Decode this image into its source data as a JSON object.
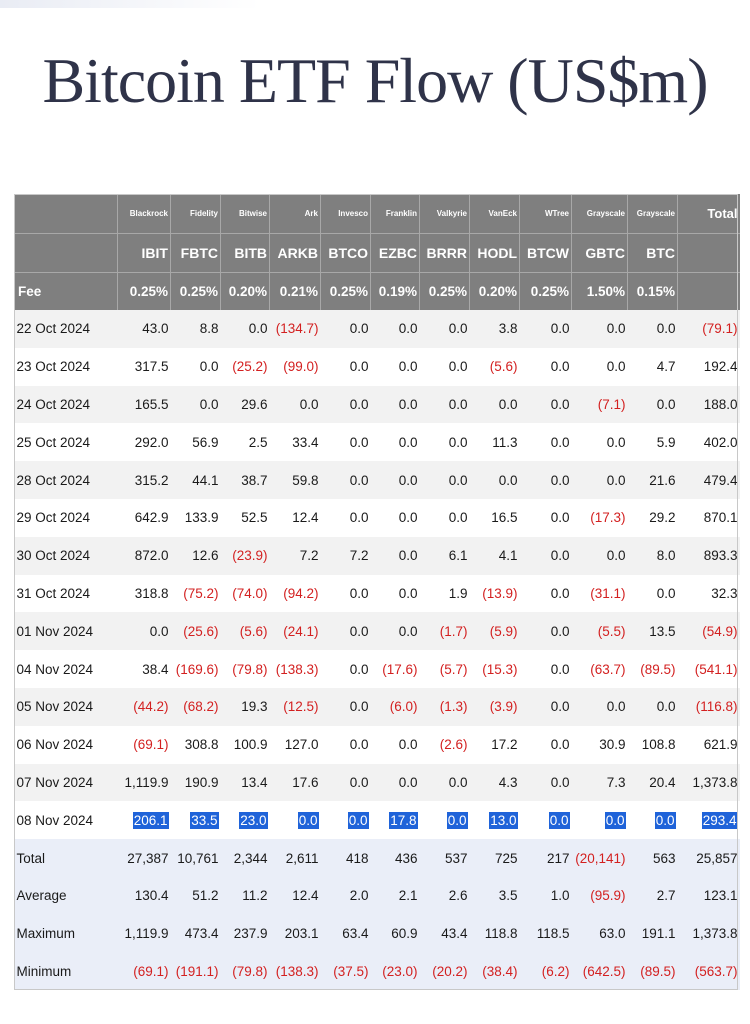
{
  "title": "Bitcoin ETF Flow (US$m)",
  "header": {
    "issuers": [
      "Blackrock",
      "Fidelity",
      "Bitwise",
      "Ark",
      "Invesco",
      "Franklin",
      "Valkyrie",
      "VanEck",
      "WTree",
      "Grayscale",
      "Grayscale"
    ],
    "total_label": "Total",
    "tickers": [
      "IBIT",
      "FBTC",
      "BITB",
      "ARKB",
      "BTCO",
      "EZBC",
      "BRRR",
      "HODL",
      "BTCW",
      "GBTC",
      "BTC"
    ],
    "fee_label": "Fee",
    "fees": [
      "0.25%",
      "0.25%",
      "0.20%",
      "0.21%",
      "0.25%",
      "0.19%",
      "0.25%",
      "0.20%",
      "0.25%",
      "1.50%",
      "0.15%"
    ]
  },
  "rows": [
    {
      "date": "22 Oct 2024",
      "values": [
        "43.0",
        "8.8",
        "0.0",
        "(134.7)",
        "0.0",
        "0.0",
        "0.0",
        "3.8",
        "0.0",
        "0.0",
        "0.0"
      ],
      "total": "(79.1)"
    },
    {
      "date": "23 Oct 2024",
      "values": [
        "317.5",
        "0.0",
        "(25.2)",
        "(99.0)",
        "0.0",
        "0.0",
        "0.0",
        "(5.6)",
        "0.0",
        "0.0",
        "4.7"
      ],
      "total": "192.4"
    },
    {
      "date": "24 Oct 2024",
      "values": [
        "165.5",
        "0.0",
        "29.6",
        "0.0",
        "0.0",
        "0.0",
        "0.0",
        "0.0",
        "0.0",
        "(7.1)",
        "0.0"
      ],
      "total": "188.0"
    },
    {
      "date": "25 Oct 2024",
      "values": [
        "292.0",
        "56.9",
        "2.5",
        "33.4",
        "0.0",
        "0.0",
        "0.0",
        "11.3",
        "0.0",
        "0.0",
        "5.9"
      ],
      "total": "402.0"
    },
    {
      "date": "28 Oct 2024",
      "values": [
        "315.2",
        "44.1",
        "38.7",
        "59.8",
        "0.0",
        "0.0",
        "0.0",
        "0.0",
        "0.0",
        "0.0",
        "21.6"
      ],
      "total": "479.4"
    },
    {
      "date": "29 Oct 2024",
      "values": [
        "642.9",
        "133.9",
        "52.5",
        "12.4",
        "0.0",
        "0.0",
        "0.0",
        "16.5",
        "0.0",
        "(17.3)",
        "29.2"
      ],
      "total": "870.1"
    },
    {
      "date": "30 Oct 2024",
      "values": [
        "872.0",
        "12.6",
        "(23.9)",
        "7.2",
        "7.2",
        "0.0",
        "6.1",
        "4.1",
        "0.0",
        "0.0",
        "8.0"
      ],
      "total": "893.3"
    },
    {
      "date": "31 Oct 2024",
      "values": [
        "318.8",
        "(75.2)",
        "(74.0)",
        "(94.2)",
        "0.0",
        "0.0",
        "1.9",
        "(13.9)",
        "0.0",
        "(31.1)",
        "0.0"
      ],
      "total": "32.3"
    },
    {
      "date": "01 Nov 2024",
      "values": [
        "0.0",
        "(25.6)",
        "(5.6)",
        "(24.1)",
        "0.0",
        "0.0",
        "(1.7)",
        "(5.9)",
        "0.0",
        "(5.5)",
        "13.5"
      ],
      "total": "(54.9)"
    },
    {
      "date": "04 Nov 2024",
      "values": [
        "38.4",
        "(169.6)",
        "(79.8)",
        "(138.3)",
        "0.0",
        "(17.6)",
        "(5.7)",
        "(15.3)",
        "0.0",
        "(63.7)",
        "(89.5)"
      ],
      "total": "(541.1)"
    },
    {
      "date": "05 Nov 2024",
      "values": [
        "(44.2)",
        "(68.2)",
        "19.3",
        "(12.5)",
        "0.0",
        "(6.0)",
        "(1.3)",
        "(3.9)",
        "0.0",
        "0.0",
        "0.0"
      ],
      "total": "(116.8)"
    },
    {
      "date": "06 Nov 2024",
      "values": [
        "(69.1)",
        "308.8",
        "100.9",
        "127.0",
        "0.0",
        "0.0",
        "(2.6)",
        "17.2",
        "0.0",
        "30.9",
        "108.8"
      ],
      "total": "621.9"
    },
    {
      "date": "07 Nov 2024",
      "values": [
        "1,119.9",
        "190.9",
        "13.4",
        "17.6",
        "0.0",
        "0.0",
        "0.0",
        "4.3",
        "0.0",
        "7.3",
        "20.4"
      ],
      "total": "1,373.8"
    },
    {
      "date": "08 Nov 2024",
      "values": [
        "206.1",
        "33.5",
        "23.0",
        "0.0",
        "0.0",
        "17.8",
        "0.0",
        "13.0",
        "0.0",
        "0.0",
        "0.0"
      ],
      "total": "293.4",
      "highlight": true
    }
  ],
  "summary": [
    {
      "label": "Total",
      "values": [
        "27,387",
        "10,761",
        "2,344",
        "2,611",
        "418",
        "436",
        "537",
        "725",
        "217",
        "(20,141)",
        "563"
      ],
      "total": "25,857"
    },
    {
      "label": "Average",
      "values": [
        "130.4",
        "51.2",
        "11.2",
        "12.4",
        "2.0",
        "2.1",
        "2.6",
        "3.5",
        "1.0",
        "(95.9)",
        "2.7"
      ],
      "total": "123.1"
    },
    {
      "label": "Maximum",
      "values": [
        "1,119.9",
        "473.4",
        "237.9",
        "203.1",
        "63.4",
        "60.9",
        "43.4",
        "118.8",
        "118.5",
        "63.0",
        "191.1"
      ],
      "total": "1,373.8"
    },
    {
      "label": "Minimum",
      "values": [
        "(69.1)",
        "(191.1)",
        "(79.8)",
        "(138.3)",
        "(37.5)",
        "(23.0)",
        "(20.2)",
        "(38.4)",
        "(6.2)",
        "(642.5)",
        "(89.5)"
      ],
      "total": "(563.7)"
    }
  ],
  "colors": {
    "header_bg": "#7f7f7f",
    "negative": "#d32020",
    "highlight": "#1f63d9",
    "title": "#2f3349"
  }
}
